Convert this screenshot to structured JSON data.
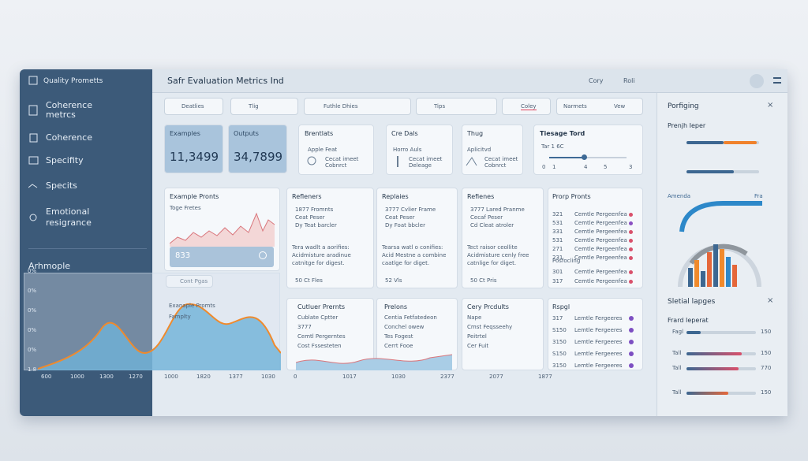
{
  "sidebar": {
    "title": "Quality Prometts",
    "items": [
      "Coherence metrcs",
      "Coherence",
      "Specifity",
      "Specits",
      "Emotional resigrance"
    ]
  },
  "header": {
    "title": "Safr Evaluation Metrics Ind",
    "actions": [
      "Cory",
      "Roli"
    ]
  },
  "filters": [
    "Deatlies",
    "Tlig",
    "Futhle Dhies",
    "Tips",
    "Coley",
    "Narmets",
    "Vew"
  ],
  "stats": [
    {
      "label": "Examples",
      "value": "11,3499"
    },
    {
      "label": "Outputs",
      "value": "34,7899"
    }
  ],
  "mini_cards": [
    {
      "title": "Brentlats",
      "lines": [
        "Apple Feat",
        "Cecat imeet",
        "Cobnrct"
      ]
    },
    {
      "title": "Cre Dals",
      "lines": [
        "Horro Auls",
        "Cecat imeet",
        "Deleage"
      ]
    },
    {
      "title": "Thug",
      "lines": [
        "Aplicitvd",
        "Cecat imeet",
        "Cobnrct"
      ]
    }
  ],
  "slider": {
    "title": "Tiesage Tord",
    "subtitle": "Tar 1 6C",
    "ticks": [
      "0",
      "1",
      "4",
      "5",
      "3"
    ]
  },
  "example_card": {
    "title": "Example Pronts",
    "subtitle": "Toge Fretes",
    "value": "833",
    "button": "Cont Pgas"
  },
  "cards": [
    {
      "title": "Refleners",
      "lines": [
        "1877 Fromnts",
        "Ceat Peser",
        "Dy Teat barcler",
        "Tera wadlt a aorifies:",
        "Acidmisture aradinue",
        "catnitge for digest."
      ],
      "footer": "50 Ct Fles"
    },
    {
      "title": "Replaies",
      "lines": [
        "3777 Cvlier Frame",
        "Ceat Peser",
        "Dy Foat bbcler",
        "Tearsa watl o conifies:",
        "Acid Mestne a combine",
        "caatlge for diget."
      ],
      "footer": "52 Vls"
    },
    {
      "title": "Refienes",
      "lines": [
        "3777 Lared Pranme",
        "Cecaf Peser",
        "Cd Cleat atroler",
        "Tect raisor ceollite",
        "Acidmisture cenly free",
        "catnlige for diget."
      ],
      "footer": "50 Ct Pris"
    }
  ],
  "prompts_list": {
    "title": "Prorp Pronts",
    "rows": [
      "321",
      "531",
      "331",
      "531",
      "271",
      "231"
    ],
    "row_label": "Cemtle Pergeenfea",
    "section": "Posfocling",
    "rows2": [
      "301",
      "317"
    ]
  },
  "bottom_cards": [
    {
      "title": "Cutluer Prernts",
      "lines": [
        "Cublate Cptter",
        "3777",
        "Cemtl Pergerntes",
        "Cost Fssesteten"
      ]
    },
    {
      "title": "Prelons",
      "lines": [
        "Centia Fetfatedeon",
        "Conchel owew",
        "Tes Fogest",
        "Cerrt Fooe"
      ]
    },
    {
      "title": "Cery Prcdults",
      "lines": [
        "Nape",
        "Cmst Feqsseehy",
        "Peitrtel",
        "Cer Fuit"
      ]
    }
  ],
  "results_list": {
    "title": "Rspgl",
    "rows": [
      "317",
      "S150",
      "3150",
      "S150",
      "3150"
    ],
    "row_label": "Lemtle Fergeeres"
  },
  "chart": {
    "title": "Arhmople",
    "overlay_title": "Exanaple Promts",
    "overlay_subtitle": "Famplty",
    "yticks": [
      "0%",
      "0%",
      "0%",
      "0%",
      "0%",
      "1.8"
    ],
    "xticks": [
      "600",
      "1000",
      "1300",
      "1270"
    ],
    "xticks2": [
      "1000",
      "1820",
      "1377",
      "1030"
    ],
    "xticks3": [
      "0",
      "1017",
      "1030",
      "2377",
      "2077",
      "1877"
    ]
  },
  "right_panel": {
    "title": "Porfiging",
    "section1": "Prenjh Ieper",
    "legend": [
      "Amenda",
      "Fra"
    ],
    "section2": "Sletial lapges",
    "section3": "Frard Ieperat",
    "bar_labels": [
      "Fagl",
      "Tall",
      "Tall",
      "Tall"
    ],
    "bar_values": [
      "150",
      "150",
      "770",
      "150"
    ]
  }
}
